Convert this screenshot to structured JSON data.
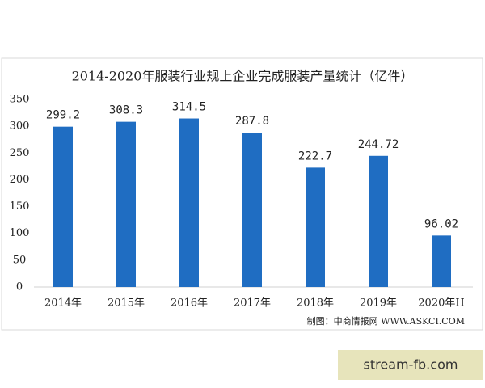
{
  "chart_data": {
    "type": "bar",
    "title": "2014-2020年服装行业规上企业完成服装产量统计（亿件）",
    "categories": [
      "2014年",
      "2015年",
      "2016年",
      "2017年",
      "2018年",
      "2019年",
      "2020年H"
    ],
    "values": [
      299.2,
      308.3,
      314.5,
      287.8,
      222.7,
      244.72,
      96.02
    ],
    "color": "#1f6dc2",
    "ylim": [
      0,
      350
    ],
    "yticks": [
      0,
      50,
      100,
      150,
      200,
      250,
      300,
      350
    ],
    "grid": false,
    "source": "制图：中商情报网 WWW.ASKCI.COM"
  },
  "badge": "stream-fb.com"
}
